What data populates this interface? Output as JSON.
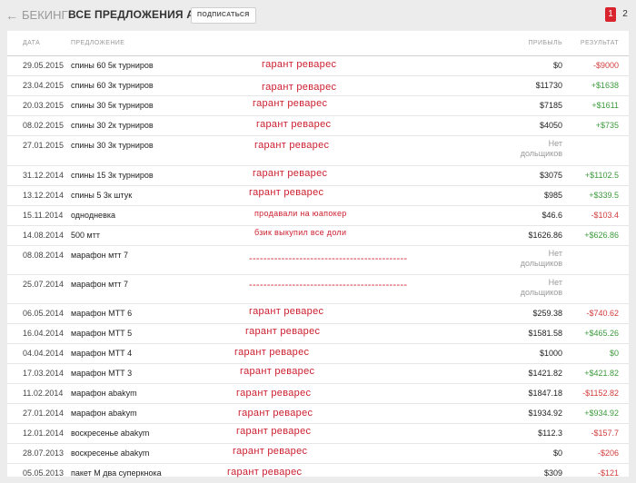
{
  "nav": {
    "back_label": "БЕКИНГ",
    "title": "ВСЕ ПРЕДЛОЖЕНИЯ ABAKYM",
    "subscribe_label": "ПОДПИСАТЬСЯ"
  },
  "pagination": {
    "pages": [
      "1",
      "2"
    ],
    "active": "1"
  },
  "colors": {
    "accent": "#d9232d",
    "positive": "#3c9a3c",
    "negative": "#d23c3c",
    "annotation": "#cc2030"
  },
  "table": {
    "headers": {
      "date": "ДАТА",
      "offer": "ПРЕДЛОЖЕНИЕ",
      "profit": "ПРИБЫЛЬ",
      "result": "РЕЗУЛЬТАТ"
    },
    "rows": [
      {
        "date": "29.05.2015",
        "offer": "спины 60 5к турниров",
        "profit": "$0",
        "profit2": "",
        "result": "-$9000",
        "note": "гарант реварес"
      },
      {
        "date": "23.04.2015",
        "offer": "спины 60 3к турниров",
        "profit": "$11730",
        "profit2": "",
        "result": "+$1638",
        "note": "гарант реварес"
      },
      {
        "date": "20.03.2015",
        "offer": "спины 30 5к турниров",
        "profit": "$7185",
        "profit2": "",
        "result": "+$1611",
        "note": "гарант реварес"
      },
      {
        "date": "08.02.2015",
        "offer": "спины 30 2к турниров",
        "profit": "$4050",
        "profit2": "",
        "result": "+$735",
        "note": "гарант реварес"
      },
      {
        "date": "27.01.2015",
        "offer": "спины 30 3к турниров",
        "profit": "Нет",
        "profit2": "дольщиков",
        "result": "",
        "note": "гарант реварес"
      },
      {
        "date": "31.12.2014",
        "offer": "спины 15 3к турниров",
        "profit": "$3075",
        "profit2": "",
        "result": "+$1102.5",
        "note": "гарант реварес"
      },
      {
        "date": "13.12.2014",
        "offer": "спины 5 3к штук",
        "profit": "$985",
        "profit2": "",
        "result": "+$339.5",
        "note": "гарант реварес"
      },
      {
        "date": "15.11.2014",
        "offer": "однодневка",
        "profit": "$46.6",
        "profit2": "",
        "result": "-$103.4",
        "note": "продавали на юапокер"
      },
      {
        "date": "14.08.2014",
        "offer": "500 мтт",
        "profit": "$1626.86",
        "profit2": "",
        "result": "+$626.86",
        "note": "бзик выкупил все доли"
      },
      {
        "date": "08.08.2014",
        "offer": "марафон мтт 7",
        "profit": "Нет",
        "profit2": "дольщиков",
        "result": "",
        "note": "--------------------------------------------"
      },
      {
        "date": "25.07.2014",
        "offer": "марафон мтт 7",
        "profit": "Нет",
        "profit2": "дольщиков",
        "result": "",
        "note": "--------------------------------------------"
      },
      {
        "date": "06.05.2014",
        "offer": "марафон МТТ 6",
        "profit": "$259.38",
        "profit2": "",
        "result": "-$740.62",
        "note": "гарант реварес"
      },
      {
        "date": "16.04.2014",
        "offer": "марафон МТТ 5",
        "profit": "$1581.58",
        "profit2": "",
        "result": "+$465.26",
        "note": "гарант реварес"
      },
      {
        "date": "04.04.2014",
        "offer": "марафон МТТ 4",
        "profit": "$1000",
        "profit2": "",
        "result": "$0",
        "note": "гарант реварес"
      },
      {
        "date": "17.03.2014",
        "offer": "марафон МТТ 3",
        "profit": "$1421.82",
        "profit2": "",
        "result": "+$421.82",
        "note": "гарант реварес"
      },
      {
        "date": "11.02.2014",
        "offer": "марафон abakym",
        "profit": "$1847.18",
        "profit2": "",
        "result": "-$1152.82",
        "note": "гарант реварес"
      },
      {
        "date": "27.01.2014",
        "offer": "марафон abakym",
        "profit": "$1934.92",
        "profit2": "",
        "result": "+$934.92",
        "note": "гарант реварес"
      },
      {
        "date": "12.01.2014",
        "offer": "воскресенье abakym",
        "profit": "$112.3",
        "profit2": "",
        "result": "-$157.7",
        "note": "гарант реварес"
      },
      {
        "date": "28.07.2013",
        "offer": "воскресенье abakym",
        "profit": "$0",
        "profit2": "",
        "result": "-$206",
        "note": "гарант реварес"
      },
      {
        "date": "05.05.2013",
        "offer": "пакет М два суперкнока",
        "profit": "$309",
        "profit2": "",
        "result": "-$121",
        "note": "гарант реварес"
      }
    ]
  }
}
